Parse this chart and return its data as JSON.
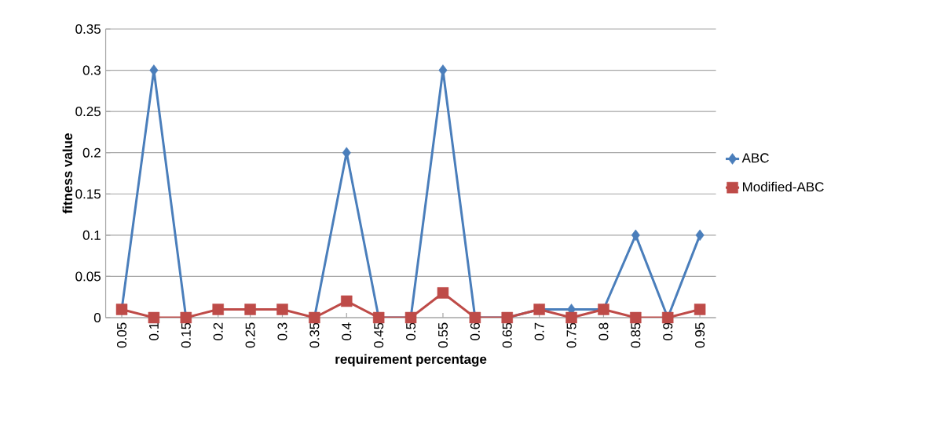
{
  "chart_data": {
    "type": "line",
    "xlabel": "requirement percentage",
    "ylabel": "fitness value",
    "categories": [
      "0.05",
      "0.1",
      "0.15",
      "0.2",
      "0.25",
      "0.3",
      "0.35",
      "0.4",
      "0.45",
      "0.5",
      "0.55",
      "0.6",
      "0.65",
      "0.7",
      "0.75",
      "0.8",
      "0.85",
      "0.9",
      "0.95"
    ],
    "series": [
      {
        "name": "ABC",
        "color": "#4a7ebb",
        "marker": "diamond",
        "values": [
          0.01,
          0.3,
          0,
          null,
          null,
          null,
          0,
          0.2,
          0,
          0,
          0.3,
          0,
          0,
          0.01,
          0.01,
          0.01,
          0.1,
          0,
          0.1
        ]
      },
      {
        "name": "Modified-ABC",
        "color": "#be4b48",
        "marker": "square",
        "values": [
          0.01,
          0,
          0,
          0.01,
          0.01,
          0.01,
          0,
          0.02,
          0,
          0,
          0.03,
          0,
          0,
          0.01,
          0,
          0.01,
          0,
          0,
          0.01
        ]
      }
    ],
    "ylim": [
      0,
      0.35
    ],
    "yticks": [
      0,
      0.05,
      0.1,
      0.15,
      0.2,
      0.25,
      0.3,
      0.35
    ],
    "grid": "y",
    "legend": "right",
    "line_style": "solid"
  }
}
